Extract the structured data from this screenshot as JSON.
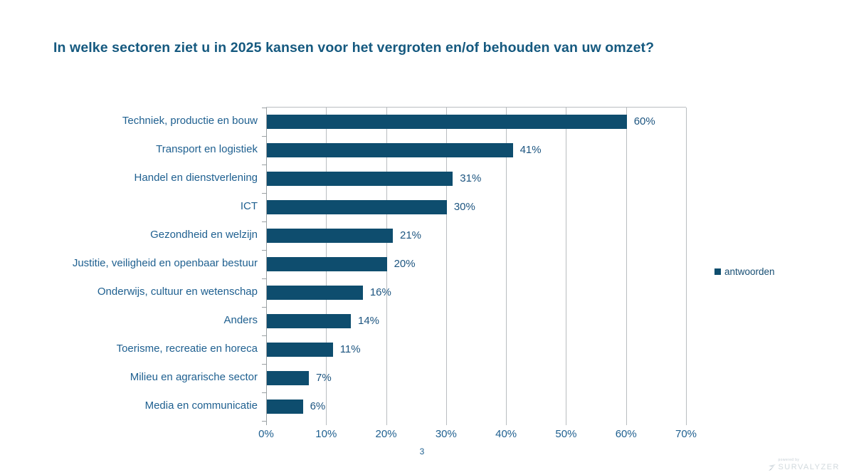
{
  "slide": {
    "title": "In welke sectoren ziet u in 2025 kansen voor het vergroten en/of behouden van uw omzet?",
    "page_number": "3"
  },
  "legend": {
    "label": "antwoorden"
  },
  "footer": {
    "powered_by": "powered by",
    "brand": "SURVALYZER"
  },
  "colors": {
    "bar": "#0e4d6e",
    "title_text": "#15597f",
    "category_text": "#1f6090",
    "value_text": "#1d5580",
    "axis_text": "#1f6090",
    "gridline": "#b9bdc0",
    "axis_line": "#9aa0a3",
    "legend_text": "#174e73",
    "logo_text": "#d2dade"
  },
  "chart_data": {
    "type": "bar",
    "orientation": "horizontal",
    "title": "In welke sectoren ziet u in 2025 kansen voor het vergroten en/of behouden van uw omzet?",
    "categories": [
      "Techniek, productie en bouw",
      "Transport en logistiek",
      "Handel en dienstverlening",
      "ICT",
      "Gezondheid en welzijn",
      "Justitie, veiligheid en openbaar bestuur",
      "Onderwijs, cultuur en wetenschap",
      "Anders",
      "Toerisme, recreatie en horeca",
      "Milieu en agrarische sector",
      "Media en communicatie"
    ],
    "series": [
      {
        "name": "antwoorden",
        "values": [
          60,
          41,
          31,
          30,
          21,
          20,
          16,
          14,
          11,
          7,
          6
        ]
      }
    ],
    "value_labels": [
      "60%",
      "41%",
      "31%",
      "30%",
      "21%",
      "20%",
      "16%",
      "14%",
      "11%",
      "7%",
      "6%"
    ],
    "x_ticks": [
      "0%",
      "10%",
      "20%",
      "30%",
      "40%",
      "50%",
      "60%",
      "70%"
    ],
    "x_tick_values": [
      0,
      10,
      20,
      30,
      40,
      50,
      60,
      70
    ],
    "xlim": [
      0,
      70
    ],
    "xlabel": "",
    "ylabel": "",
    "grid": true,
    "data_labels": "outside-end",
    "legend_position": "right"
  }
}
